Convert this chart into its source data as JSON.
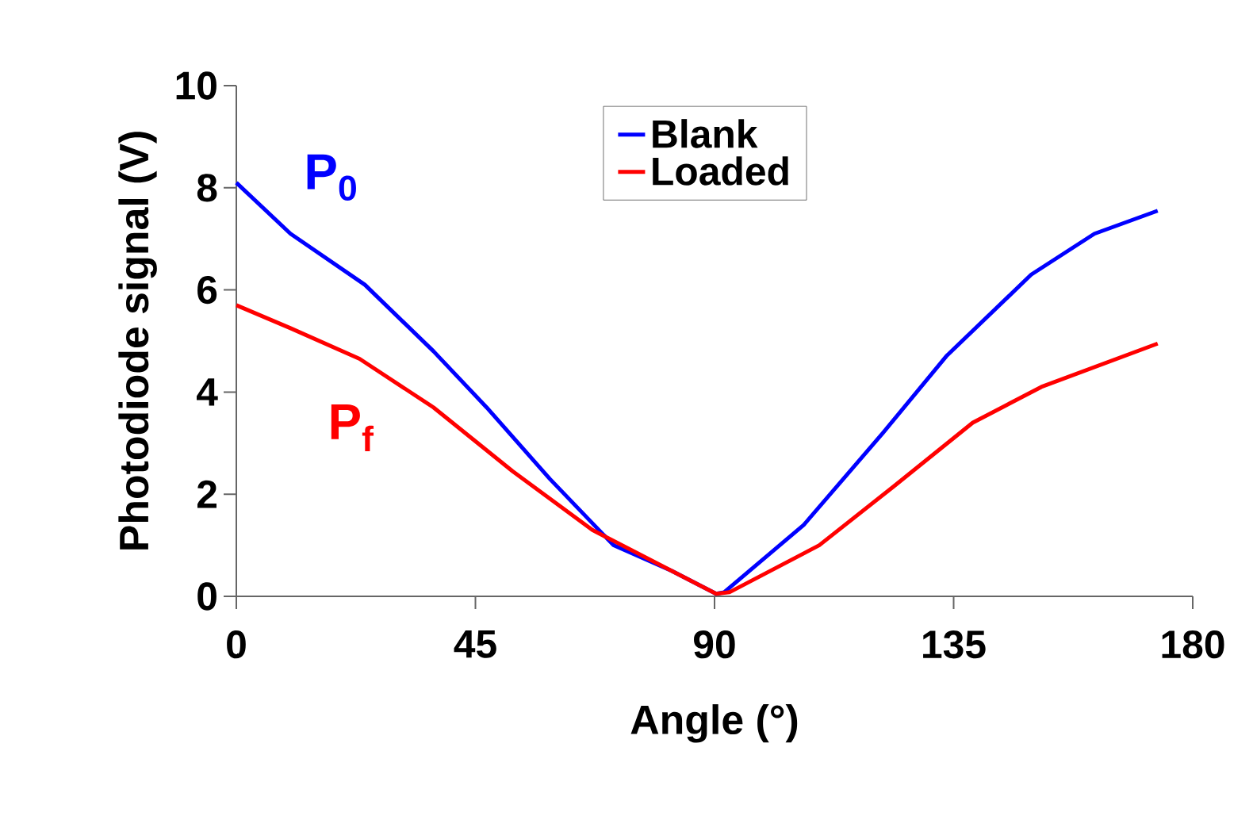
{
  "chart_data": {
    "type": "line",
    "xlabel": "Angle (°)",
    "ylabel": "Photodiode signal (V)",
    "xlim": [
      0,
      180
    ],
    "ylim": [
      0,
      10
    ],
    "xticks": [
      0,
      45,
      90,
      135,
      180
    ],
    "yticks": [
      0,
      2,
      4,
      6,
      8,
      10
    ],
    "grid": false,
    "legend": "top",
    "marker": "none",
    "line_style": "solid",
    "series": [
      {
        "name": "Blank",
        "color": "#0000ff",
        "x": [
          0,
          10.2,
          24.2,
          37.1,
          47.1,
          59,
          71,
          81.9,
          90.3,
          91.8,
          106.8,
          121.7,
          133.6,
          149.6,
          161.5,
          173.4
        ],
        "values": [
          8.1,
          7.1,
          6.1,
          4.8,
          3.7,
          2.3,
          1.0,
          0.5,
          0.05,
          0.08,
          1.4,
          3.2,
          4.7,
          6.3,
          7.1,
          7.55
        ]
      },
      {
        "name": "Loaded",
        "color": "#ff0000",
        "x": [
          0,
          10.2,
          23.2,
          37.1,
          52,
          67,
          81.9,
          90.3,
          92.8,
          109.7,
          123.7,
          138.6,
          151.5,
          173.4
        ],
        "values": [
          5.7,
          5.25,
          4.65,
          3.7,
          2.45,
          1.3,
          0.5,
          0.05,
          0.08,
          1.0,
          2.15,
          3.4,
          4.1,
          4.95
        ]
      }
    ],
    "annotations": [
      "P$_{0}$",
      "P$_{f}$"
    ]
  }
}
